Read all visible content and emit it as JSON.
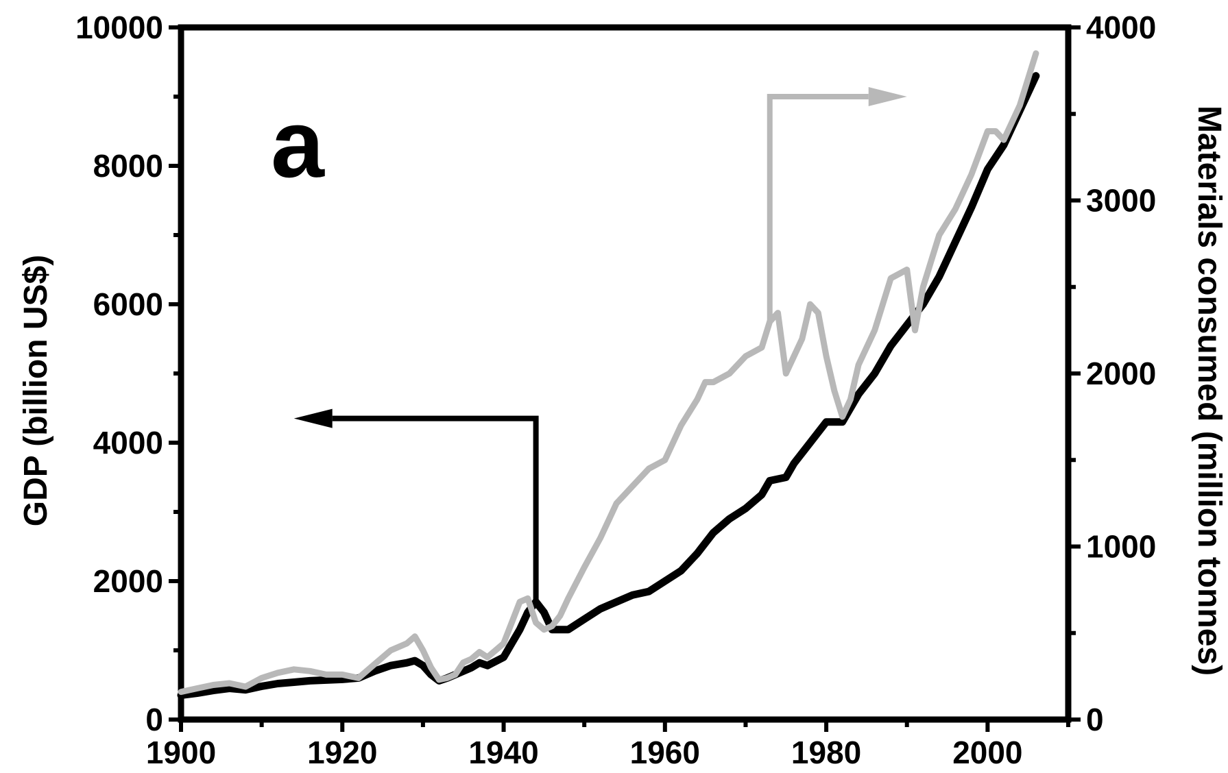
{
  "chart_data": {
    "type": "line",
    "panel_label": "a",
    "xlim": [
      1900,
      2010
    ],
    "x_ticks": [
      1900,
      1920,
      1940,
      1960,
      1980,
      2000
    ],
    "y_left": {
      "label": "GDP (billion US$)",
      "lim": [
        0,
        10000
      ],
      "ticks": [
        0,
        2000,
        4000,
        6000,
        8000,
        10000
      ]
    },
    "y_right": {
      "label": "Materials consumed (million tonnes)",
      "lim": [
        0,
        4000
      ],
      "ticks": [
        0,
        1000,
        2000,
        3000,
        4000
      ]
    },
    "grid": false,
    "series": [
      {
        "axis": "left",
        "color": "#000000",
        "x": [
          1900,
          1902,
          1904,
          1906,
          1908,
          1910,
          1912,
          1914,
          1916,
          1918,
          1920,
          1922,
          1924,
          1926,
          1928,
          1929,
          1930,
          1931,
          1932,
          1933,
          1934,
          1936,
          1937,
          1938,
          1940,
          1941,
          1942,
          1943,
          1944,
          1945,
          1946,
          1948,
          1950,
          1952,
          1954,
          1956,
          1958,
          1960,
          1962,
          1964,
          1966,
          1968,
          1970,
          1972,
          1973,
          1975,
          1976,
          1978,
          1980,
          1982,
          1984,
          1986,
          1988,
          1990,
          1992,
          1994,
          1996,
          1998,
          2000,
          2002,
          2004,
          2006
        ],
        "y": [
          350,
          380,
          420,
          450,
          430,
          480,
          520,
          540,
          560,
          570,
          580,
          600,
          700,
          780,
          820,
          850,
          780,
          650,
          560,
          600,
          650,
          750,
          820,
          780,
          900,
          1100,
          1300,
          1550,
          1700,
          1550,
          1300,
          1300,
          1450,
          1600,
          1700,
          1800,
          1850,
          2000,
          2150,
          2400,
          2700,
          2900,
          3050,
          3250,
          3450,
          3500,
          3700,
          4000,
          4300,
          4300,
          4700,
          5000,
          5400,
          5700,
          6000,
          6400,
          6900,
          7400,
          7950,
          8300,
          8800,
          9300
        ]
      },
      {
        "axis": "right",
        "color": "#b8b8b8",
        "x": [
          1900,
          1902,
          1904,
          1906,
          1908,
          1910,
          1912,
          1914,
          1916,
          1918,
          1920,
          1922,
          1924,
          1926,
          1928,
          1929,
          1930,
          1931,
          1932,
          1933,
          1934,
          1935,
          1936,
          1937,
          1938,
          1940,
          1941,
          1942,
          1943,
          1944,
          1945,
          1946,
          1947,
          1948,
          1950,
          1952,
          1953,
          1954,
          1955,
          1956,
          1958,
          1960,
          1962,
          1964,
          1965,
          1966,
          1968,
          1970,
          1972,
          1973,
          1974,
          1975,
          1976,
          1977,
          1978,
          1979,
          1980,
          1981,
          1982,
          1983,
          1984,
          1986,
          1988,
          1990,
          1991,
          1992,
          1994,
          1996,
          1998,
          2000,
          2001,
          2002,
          2003,
          2004,
          2006
        ],
        "y": [
          160,
          180,
          200,
          210,
          190,
          240,
          270,
          290,
          280,
          260,
          260,
          240,
          320,
          400,
          440,
          480,
          400,
          300,
          230,
          240,
          260,
          330,
          350,
          390,
          360,
          440,
          560,
          680,
          700,
          560,
          520,
          540,
          600,
          700,
          880,
          1050,
          1150,
          1250,
          1300,
          1350,
          1450,
          1500,
          1700,
          1850,
          1950,
          1950,
          2000,
          2100,
          2150,
          2300,
          2350,
          2000,
          2100,
          2200,
          2400,
          2350,
          2100,
          1900,
          1750,
          1850,
          2050,
          2250,
          2550,
          2600,
          2250,
          2500,
          2800,
          2950,
          3150,
          3400,
          3400,
          3350,
          3450,
          3550,
          3850
        ]
      }
    ],
    "annotations": [
      {
        "type": "arrow",
        "series": 0,
        "anchor_x": 1944,
        "anchor_y": 1700,
        "corner_y": 4350,
        "end_x": 1914,
        "color": "#000000"
      },
      {
        "type": "arrow",
        "series": 1,
        "anchor_x": 1973,
        "anchor_y": 2300,
        "corner_y": 3600,
        "end_x": 1990,
        "color": "#b8b8b8"
      }
    ]
  }
}
